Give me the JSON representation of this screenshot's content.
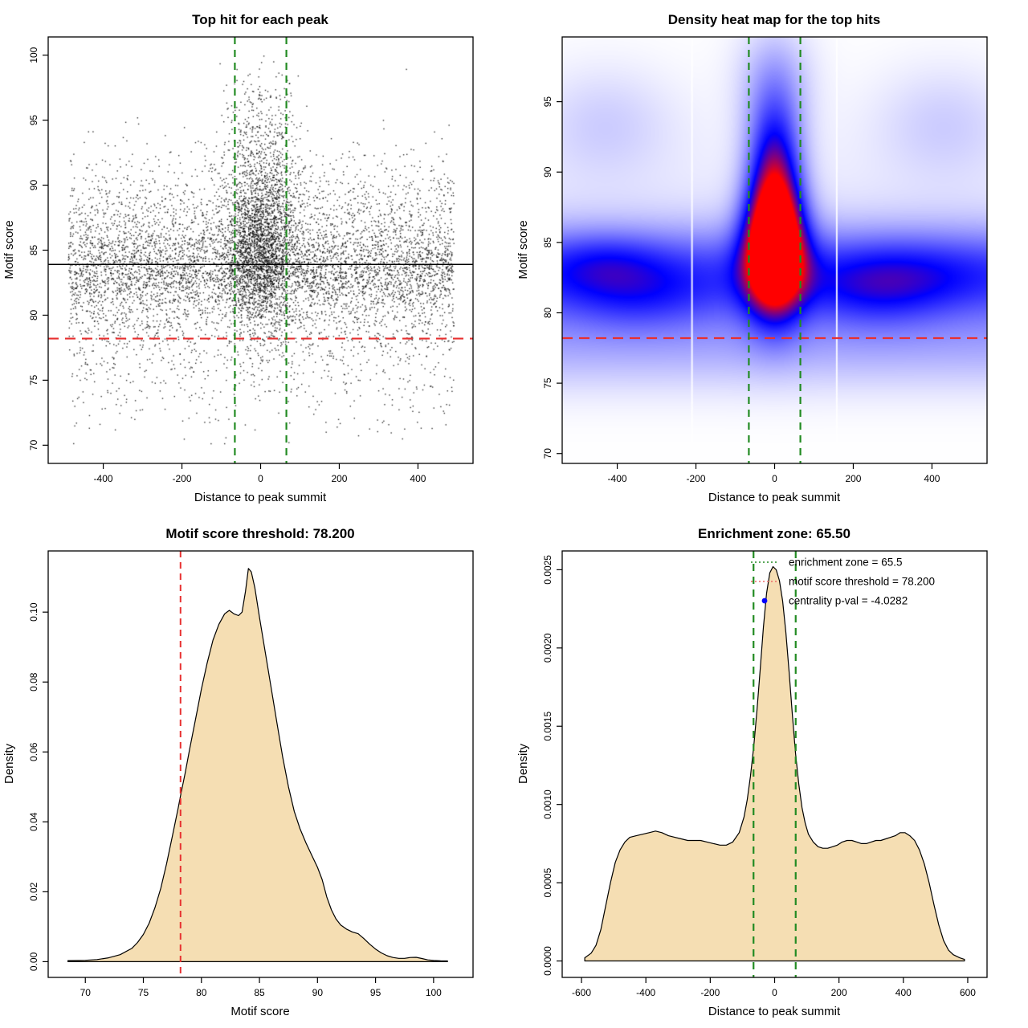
{
  "colors": {
    "threshold_red": "#e83030",
    "zone_green": "#228B22",
    "legend_red": "#ef6a6a",
    "dot_blue": "#0000ff",
    "fill_wheat": "#f5deb3",
    "curve_stroke": "#000000",
    "heat_low": "#ffffff",
    "heat_mid": "#0000ff",
    "heat_high": "#ff0000",
    "point_black": "#000000"
  },
  "chart_data": [
    {
      "type": "scatter",
      "title": "Top hit for each peak",
      "xlabel": "Distance to peak summit",
      "ylabel": "Motif score",
      "xlim": [
        -540,
        540
      ],
      "ylim": [
        68.6,
        101.4
      ],
      "xtick_vals": [
        -400,
        -200,
        0,
        200,
        400
      ],
      "xtick_labels": [
        "-400",
        "-200",
        "0",
        "200",
        "400"
      ],
      "ytick_vals": [
        70,
        75,
        80,
        85,
        90,
        95,
        100
      ],
      "ytick_labels": [
        "70",
        "75",
        "80",
        "85",
        "90",
        "95",
        "100"
      ],
      "seed": 42,
      "background_points": {
        "n": 6500,
        "x_range": [
          -490,
          490
        ],
        "y_mixture": [
          [
            0.52,
            83.2,
            1.7
          ],
          [
            0.18,
            86.0,
            2.0
          ],
          [
            0.12,
            89.0,
            2.5
          ],
          [
            0.1,
            79.5,
            1.6
          ],
          [
            0.06,
            76.5,
            2.0
          ],
          [
            0.02,
            73.5,
            2.0
          ]
        ]
      },
      "central_points": {
        "n": 2600,
        "x_sigma": 47,
        "y_mixture": [
          [
            0.4,
            84.5,
            2.2
          ],
          [
            0.25,
            87.5,
            2.8
          ],
          [
            0.2,
            91.0,
            3.0
          ],
          [
            0.1,
            80.5,
            2.0
          ],
          [
            0.05,
            95.0,
            2.2
          ]
        ]
      },
      "y_clip": [
        69.8,
        100.4
      ],
      "mean_line_y": 83.9,
      "threshold_y": 78.2,
      "zone_x": [
        -65.5,
        65.5
      ]
    },
    {
      "type": "heatmap",
      "title": "Density heat map for the top hits",
      "xlabel": "Distance to peak summit",
      "ylabel": "Motif score",
      "xlim": [
        -540,
        540
      ],
      "ylim": [
        69.3,
        99.6
      ],
      "xtick_vals": [
        -400,
        -200,
        0,
        200,
        400
      ],
      "xtick_labels": [
        "-400",
        "-200",
        "0",
        "200",
        "400"
      ],
      "ytick_vals": [
        70,
        75,
        80,
        85,
        90,
        95
      ],
      "ytick_labels": [
        "70",
        "75",
        "80",
        "85",
        "90",
        "95"
      ],
      "components": [
        [
          0.42,
          0,
          9000,
          82.6,
          2.4
        ],
        [
          0.18,
          -430,
          110,
          83.6,
          1.5
        ],
        [
          0.16,
          -350,
          130,
          81.0,
          1.7
        ],
        [
          0.15,
          330,
          150,
          82.8,
          1.8
        ],
        [
          0.14,
          260,
          120,
          81.2,
          1.8
        ],
        [
          0.16,
          0,
          9000,
          77.5,
          2.2
        ],
        [
          0.1,
          -430,
          120,
          93.5,
          2.8
        ],
        [
          0.1,
          430,
          120,
          93.5,
          2.8
        ],
        [
          1.35,
          0,
          52,
          84.6,
          3.1
        ],
        [
          0.55,
          0,
          44,
          89.5,
          3.2
        ],
        [
          0.22,
          0,
          55,
          94.0,
          3.0
        ],
        [
          0.1,
          0,
          70,
          97.5,
          2.5
        ],
        [
          0.05,
          0,
          9000,
          86.0,
          6.0
        ]
      ],
      "white_gaps_x": [
        -210,
        158
      ],
      "threshold_y": 78.2,
      "zone_x": [
        -65.5,
        65.5
      ]
    },
    {
      "type": "area",
      "title": "Motif score threshold: 78.200",
      "xlabel": "Motif score",
      "ylabel": "Density",
      "xlim": [
        66.8,
        103.4
      ],
      "ylim": [
        -0.0045,
        0.1175
      ],
      "xtick_vals": [
        70,
        75,
        80,
        85,
        90,
        95,
        100
      ],
      "xtick_labels": [
        "70",
        "75",
        "80",
        "85",
        "90",
        "95",
        "100"
      ],
      "ytick_vals": [
        0.0,
        0.02,
        0.04,
        0.06,
        0.08,
        0.1
      ],
      "ytick_labels": [
        "0.00",
        "0.02",
        "0.04",
        "0.06",
        "0.08",
        "0.10"
      ],
      "threshold_x": 78.2,
      "points": [
        [
          68.5,
          0.0003
        ],
        [
          70,
          0.0004
        ],
        [
          71,
          0.0006
        ],
        [
          72,
          0.0011
        ],
        [
          73,
          0.002
        ],
        [
          74,
          0.0038
        ],
        [
          74.5,
          0.0055
        ],
        [
          75,
          0.0078
        ],
        [
          75.5,
          0.011
        ],
        [
          76,
          0.0155
        ],
        [
          76.5,
          0.021
        ],
        [
          77,
          0.028
        ],
        [
          77.5,
          0.036
        ],
        [
          78,
          0.044
        ],
        [
          78.2,
          0.0475
        ],
        [
          78.6,
          0.054
        ],
        [
          79,
          0.061
        ],
        [
          79.5,
          0.0695
        ],
        [
          80,
          0.078
        ],
        [
          80.5,
          0.0855
        ],
        [
          81,
          0.092
        ],
        [
          81.5,
          0.0965
        ],
        [
          82,
          0.0995
        ],
        [
          82.4,
          0.1005
        ],
        [
          82.8,
          0.0995
        ],
        [
          83.2,
          0.099
        ],
        [
          83.5,
          0.1
        ],
        [
          83.8,
          0.106
        ],
        [
          84.05,
          0.1125
        ],
        [
          84.3,
          0.1115
        ],
        [
          84.6,
          0.107
        ],
        [
          85,
          0.0985
        ],
        [
          85.5,
          0.0885
        ],
        [
          86,
          0.0785
        ],
        [
          86.5,
          0.0685
        ],
        [
          87,
          0.0585
        ],
        [
          87.5,
          0.05
        ],
        [
          88,
          0.043
        ],
        [
          88.5,
          0.038
        ],
        [
          89,
          0.034
        ],
        [
          89.5,
          0.0305
        ],
        [
          90,
          0.027
        ],
        [
          90.4,
          0.0235
        ],
        [
          90.8,
          0.0185
        ],
        [
          91.2,
          0.0148
        ],
        [
          91.6,
          0.0122
        ],
        [
          92,
          0.0105
        ],
        [
          92.5,
          0.0093
        ],
        [
          93,
          0.0085
        ],
        [
          93.5,
          0.008
        ],
        [
          94,
          0.0066
        ],
        [
          94.5,
          0.005
        ],
        [
          95,
          0.0036
        ],
        [
          95.5,
          0.0025
        ],
        [
          96,
          0.0017
        ],
        [
          96.5,
          0.0012
        ],
        [
          97,
          0.00095
        ],
        [
          97.5,
          0.00095
        ],
        [
          98,
          0.0012
        ],
        [
          98.5,
          0.00125
        ],
        [
          99,
          0.0009
        ],
        [
          99.5,
          0.0005
        ],
        [
          100,
          0.00035
        ],
        [
          100.6,
          0.00025
        ],
        [
          101.2,
          0.0002
        ]
      ]
    },
    {
      "type": "area",
      "title": "Enrichment zone: 65.50",
      "xlabel": "Distance to peak summit",
      "ylabel": "Density",
      "xlim": [
        -660,
        660
      ],
      "ylim": [
        -0.000105,
        0.00262
      ],
      "xtick_vals": [
        -600,
        -400,
        -200,
        0,
        200,
        400,
        600
      ],
      "xtick_labels": [
        "-600",
        "-400",
        "-200",
        "0",
        "200",
        "400",
        "600"
      ],
      "ytick_vals": [
        0.0,
        0.0005,
        0.001,
        0.0015,
        0.002,
        0.0025
      ],
      "ytick_labels": [
        "0.0000",
        "0.0005",
        "0.0010",
        "0.0015",
        "0.0020",
        "0.0025"
      ],
      "zone_x": [
        -65.5,
        65.5
      ],
      "legend": {
        "rows": [
          {
            "sample": "dotted",
            "color": "#228B22",
            "label": "enrichment zone = 65.5"
          },
          {
            "sample": "dotted",
            "color": "#ef6a6a",
            "label": "motif score threshold = 78.200"
          },
          {
            "sample": "dot",
            "color": "#0000ff",
            "label": "centrality p-val = -4.0282"
          }
        ]
      },
      "points": [
        [
          -590,
          2e-05
        ],
        [
          -570,
          5e-05
        ],
        [
          -555,
          0.0001
        ],
        [
          -540,
          0.0002
        ],
        [
          -525,
          0.00035
        ],
        [
          -510,
          0.0005
        ],
        [
          -495,
          0.00063
        ],
        [
          -480,
          0.00071
        ],
        [
          -465,
          0.00076
        ],
        [
          -450,
          0.00079
        ],
        [
          -430,
          0.0008
        ],
        [
          -410,
          0.00081
        ],
        [
          -390,
          0.00082
        ],
        [
          -370,
          0.00083
        ],
        [
          -350,
          0.00082
        ],
        [
          -330,
          0.0008
        ],
        [
          -310,
          0.00079
        ],
        [
          -290,
          0.00078
        ],
        [
          -270,
          0.00077
        ],
        [
          -250,
          0.00077
        ],
        [
          -230,
          0.00077
        ],
        [
          -210,
          0.00076
        ],
        [
          -190,
          0.00075
        ],
        [
          -170,
          0.00074
        ],
        [
          -150,
          0.00074
        ],
        [
          -130,
          0.00076
        ],
        [
          -110,
          0.00082
        ],
        [
          -95,
          0.00092
        ],
        [
          -85,
          0.00103
        ],
        [
          -75,
          0.00118
        ],
        [
          -65,
          0.00137
        ],
        [
          -55,
          0.0016
        ],
        [
          -45,
          0.00186
        ],
        [
          -35,
          0.00213
        ],
        [
          -25,
          0.00235
        ],
        [
          -15,
          0.00248
        ],
        [
          -5,
          0.00252
        ],
        [
          5,
          0.0025
        ],
        [
          15,
          0.00243
        ],
        [
          25,
          0.0023
        ],
        [
          35,
          0.0021
        ],
        [
          45,
          0.00185
        ],
        [
          55,
          0.00158
        ],
        [
          65,
          0.00133
        ],
        [
          75,
          0.00113
        ],
        [
          85,
          0.00098
        ],
        [
          95,
          0.00088
        ],
        [
          105,
          0.00081
        ],
        [
          120,
          0.00076
        ],
        [
          135,
          0.00073
        ],
        [
          150,
          0.00072
        ],
        [
          165,
          0.00072
        ],
        [
          180,
          0.00073
        ],
        [
          195,
          0.00074
        ],
        [
          210,
          0.00076
        ],
        [
          225,
          0.00077
        ],
        [
          240,
          0.00077
        ],
        [
          255,
          0.00076
        ],
        [
          270,
          0.00075
        ],
        [
          285,
          0.00075
        ],
        [
          300,
          0.00076
        ],
        [
          315,
          0.00077
        ],
        [
          330,
          0.00077
        ],
        [
          345,
          0.00078
        ],
        [
          360,
          0.00079
        ],
        [
          375,
          0.0008
        ],
        [
          390,
          0.00082
        ],
        [
          405,
          0.00082
        ],
        [
          420,
          0.0008
        ],
        [
          435,
          0.00077
        ],
        [
          450,
          0.00071
        ],
        [
          465,
          0.00062
        ],
        [
          480,
          0.0005
        ],
        [
          495,
          0.00036
        ],
        [
          510,
          0.00023
        ],
        [
          525,
          0.00013
        ],
        [
          540,
          7e-05
        ],
        [
          555,
          4e-05
        ],
        [
          575,
          2e-05
        ],
        [
          590,
          1e-05
        ]
      ]
    }
  ]
}
